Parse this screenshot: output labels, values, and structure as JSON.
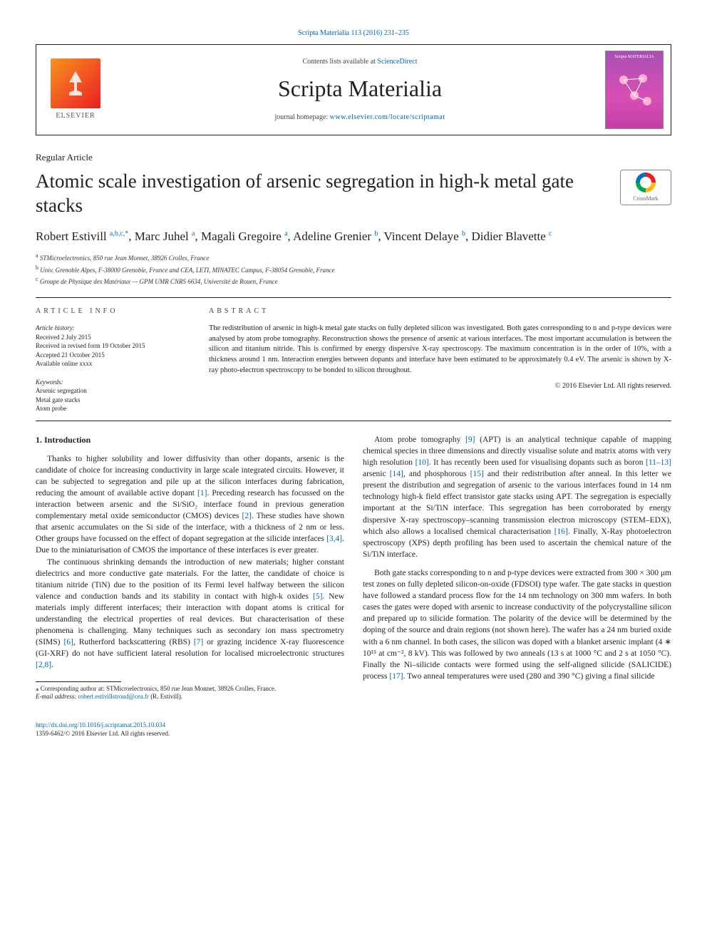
{
  "journal_ref": "Scripta Materialia 113 (2016) 231–235",
  "header": {
    "contents_prefix": "Contents lists available at ",
    "contents_link": "ScienceDirect",
    "journal_name": "Scripta Materialia",
    "homepage_prefix": "journal homepage: ",
    "homepage_url": "www.elsevier.com/locate/scriptamat",
    "elsevier_label": "ELSEVIER",
    "cover_label_top": "Scripta MATERIALIA"
  },
  "article_type": "Regular Article",
  "title": "Atomic scale investigation of arsenic segregation in high-k metal gate stacks",
  "crossmark_label": "CrossMark",
  "authors_html": "Robert Estivill <sup>a,b,c,*</sup>, Marc Juhel <sup>a</sup>, Magali Gregoire <sup>a</sup>, Adeline Grenier <sup>b</sup>, Vincent Delaye <sup>b</sup>, Didier Blavette <sup>c</sup>",
  "authors": [
    "Robert Estivill",
    "Marc Juhel",
    "Magali Gregoire",
    "Adeline Grenier",
    "Vincent Delaye",
    "Didier Blavette"
  ],
  "affiliations": [
    {
      "key": "a",
      "text": "STMicroelectronics, 850 rue Jean Monnet, 38926 Crolles, France"
    },
    {
      "key": "b",
      "text": "Univ. Grenoble Alpes, F-38000 Grenoble, France and CEA, LETI, MINATEC Campus, F-38054 Grenoble, France"
    },
    {
      "key": "c",
      "text": "Groupe de Physique des Matériaux — GPM UMR CNRS 6634, Université de Rouen, France"
    }
  ],
  "meta": {
    "heading_info": "ARTICLE INFO",
    "history_label": "Article history:",
    "received": "Received 2 July 2015",
    "revised": "Received in revised form 19 October 2015",
    "accepted": "Accepted 21 October 2015",
    "available": "Available online xxxx",
    "keywords_label": "Keywords:",
    "keywords": [
      "Arsenic segregation",
      "Metal gate stacks",
      "Atom probe"
    ]
  },
  "abstract": {
    "heading": "ABSTRACT",
    "text": "The redistribution of arsenic in high-k metal gate stacks on fully depleted silicon was investigated. Both gates corresponding to n and p-type devices were analysed by atom probe tomography. Reconstruction shows the presence of arsenic at various interfaces. The most important accumulation is between the silicon and titanium nitride. This is confirmed by energy dispersive X-ray spectroscopy. The maximum concentration is in the order of 10%, with a thickness around 1 nm. Interaction energies between dopants and interface have been estimated to be approximately 0.4 eV. The arsenic is shown by X-ray photo-electron spectroscopy to be bonded to silicon throughout.",
    "copyright": "© 2016 Elsevier Ltd. All rights reserved."
  },
  "body": {
    "section_title": "1. Introduction",
    "p1": "Thanks to higher solubility and lower diffusivity than other dopants, arsenic is the candidate of choice for increasing conductivity in large scale integrated circuits. However, it can be subjected to segregation and pile up at the silicon interfaces during fabrication, reducing the amount of available active dopant ",
    "p1_ref1": "[1]",
    "p1_b": ". Preceding research has focussed on the interaction between arsenic and the Si/SiO₂ interface found in previous generation complementary metal oxide semiconductor (CMOS) devices ",
    "p1_ref2": "[2]",
    "p1_c": ". These studies have shown that arsenic accumulates on the Si side of the interface, with a thickness of 2 nm or less. Other groups have focussed on the effect of dopant segregation at the silicide interfaces ",
    "p1_ref3": "[3,4]",
    "p1_d": ". Due to the miniaturisation of CMOS the importance of these interfaces is ever greater.",
    "p2": "The continuous shrinking demands the introduction of new materials; higher constant dielectrics and more conductive gate materials. For the latter, the candidate of choice is titanium nitride (TiN) due to the position of its Fermi level halfway between the silicon valence and conduction bands and its stability in contact with high-k oxides ",
    "p2_ref1": "[5]",
    "p2_b": ". New materials imply different interfaces; their interaction with dopant atoms is critical for understanding the electrical properties of real devices. But characterisation of these phenomena is challenging. Many techniques such as secondary ion mass spectrometry (SIMS) ",
    "p2_ref2": "[6]",
    "p2_c": ", Rutherford backscattering (RBS) ",
    "p2_ref3": "[7]",
    "p2_d": " or grazing incidence X-ray ",
    "p3": "fluorescence (GI-XRF) do not have sufficient lateral resolution for localised microelectronic structures ",
    "p3_ref1": "[2,8]",
    "p3_b": ".",
    "p4": "Atom probe tomography ",
    "p4_ref1": "[9]",
    "p4_b": " (APT) is an analytical technique capable of mapping chemical species in three dimensions and directly visualise solute and matrix atoms with very high resolution ",
    "p4_ref2": "[10]",
    "p4_c": ". It has recently been used for visualising dopants such as boron ",
    "p4_ref3": "[11–13]",
    "p4_d": " arsenic ",
    "p4_ref4": "[14]",
    "p4_e": ", and phosphorous ",
    "p4_ref5": "[15]",
    "p4_f": " and their redistribution after anneal. In this letter we present the distribution and segregation of arsenic to the various interfaces found in 14 nm technology high-k field effect transistor gate stacks using APT. The segregation is especially important at the Si/TiN interface. This segregation has been corroborated by energy dispersive X-ray spectroscopy–scanning transmission electron microscopy (STEM–EDX), which also allows a localised chemical characterisation ",
    "p4_ref6": "[16]",
    "p4_g": ". Finally, X-Ray photoelectron spectroscopy (XPS) depth profiling has been used to ascertain the chemical nature of the Si/TiN interface.",
    "p5": "Both gate stacks corresponding to n and p-type devices were extracted from 300 × 300 μm test zones on fully depleted silicon-on-oxide (FDSOI) type wafer. The gate stacks in question have followed a standard process flow for the 14 nm technology on 300 mm wafers. In both cases the gates were doped with arsenic to increase conductivity of the polycrystalline silicon and prepared up to silicide formation. The polarity of the device will be determined by the doping of the source and drain regions (not shown here). The wafer has a 24 nm buried oxide with a 6 nm channel. In both cases, the silicon was doped with a blanket arsenic implant (4 ∗ 10¹⁵ at cm⁻², 8 kV). This was followed by two anneals (13 s at 1000 °C and 2 s at 1050 °C). Finally the Ni–silicide contacts were formed using the self-aligned silicide (SALICIDE) process ",
    "p5_ref1": "[17]",
    "p5_b": ". Two anneal temperatures were used (280 and 390 °C) giving a final silicide"
  },
  "footnote": {
    "corr_label": "⁎ Corresponding author at: STMicroelectronics, 850 rue Jean Monnet, 38926 Crolles, France.",
    "email_label": "E-mail address: ",
    "email": "robert.estivillstroud@cea.fr",
    "email_suffix": " (R. Estivill)."
  },
  "footer": {
    "doi": "http://dx.doi.org/10.1016/j.scriptamat.2015.10.034",
    "issn_copyright": "1359-6462/© 2016 Elsevier Ltd. All rights reserved."
  },
  "colors": {
    "link": "#0066b3",
    "text": "#231f20",
    "elsevier_grad_start": "#f7941e",
    "elsevier_grad_end": "#ed1c24",
    "cover_grad_a": "#a94fb5",
    "cover_grad_b": "#d94fb5"
  }
}
